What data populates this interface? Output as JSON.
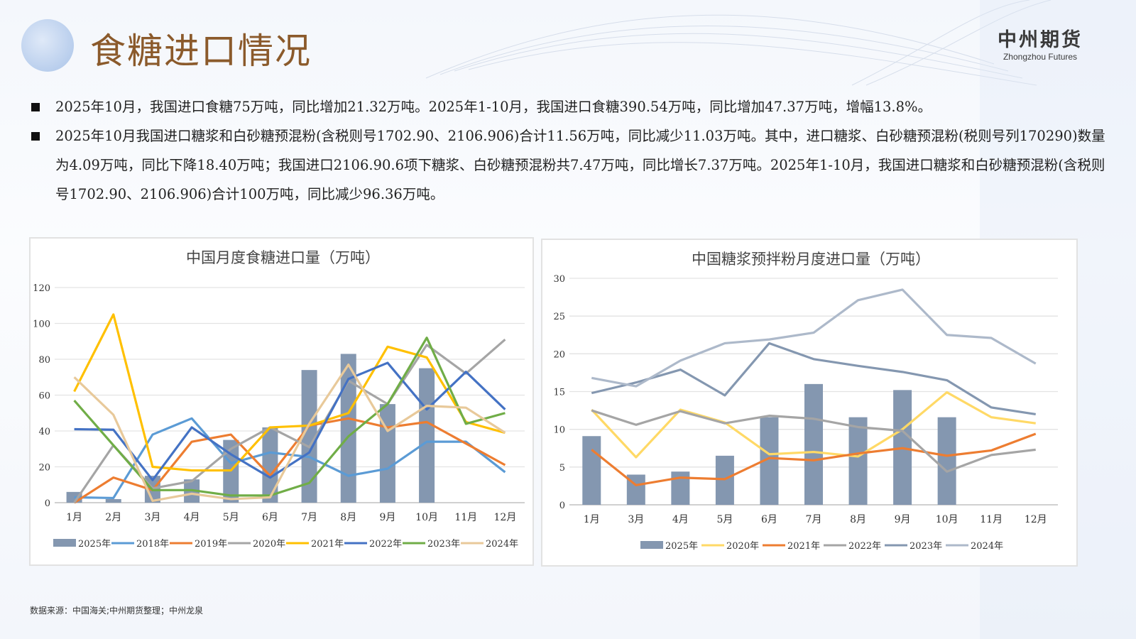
{
  "header": {
    "title": "食糖进口情况",
    "brand_cn": "中州期货",
    "brand_en": "Zhongzhou Futures"
  },
  "bullets": [
    "2025年10月，我国进口食糖75万吨，同比增加21.32万吨。2025年1-10月，我国进口食糖390.54万吨，同比增加47.37万吨，增幅13.8%。",
    "2025年10月我国进口糖浆和白砂糖预混粉(含税则号1702.90、2106.906)合计11.56万吨，同比减少11.03万吨。其中，进口糖浆、白砂糖预混粉(税则号列170290)数量为4.09万吨，同比下降18.40万吨；我国进口2106.90.6项下糖浆、白砂糖预混粉共7.47万吨，同比增长7.37万吨。2025年1-10月，我国进口糖浆和白砂糖预混粉(含税则号1702.90、2106.906)合计100万吨，同比减少96.36万吨。"
  ],
  "source": "数据来源：中国海关;中州期货整理；中州龙泉",
  "chart_data": [
    {
      "type": "bar+line",
      "title": "中国月度食糖进口量（万吨）",
      "ylim": [
        0,
        120
      ],
      "yticks": [
        0,
        20,
        40,
        60,
        80,
        100,
        120
      ],
      "grid": true,
      "legend": "bottom",
      "categories": [
        "1月",
        "2月",
        "3月",
        "4月",
        "5月",
        "6月",
        "7月",
        "8月",
        "9月",
        "10月",
        "11月",
        "12月"
      ],
      "series": [
        {
          "name": "2025年",
          "kind": "bar",
          "color": "#8497b0",
          "values": [
            6,
            2,
            15,
            13,
            35,
            42,
            74,
            83,
            55,
            75,
            null,
            null
          ]
        },
        {
          "name": "2018年",
          "kind": "line",
          "color": "#5b9bd5",
          "values": [
            3,
            2.6,
            38,
            47,
            22,
            28,
            25.5,
            15,
            19,
            34,
            34,
            17
          ]
        },
        {
          "name": "2019年",
          "kind": "line",
          "color": "#ed7d31",
          "values": [
            0,
            14,
            7,
            34,
            38,
            15,
            43,
            47,
            42,
            45,
            33,
            21
          ]
        },
        {
          "name": "2020年",
          "kind": "line",
          "color": "#a5a5a5",
          "values": [
            0,
            32,
            8,
            12,
            30,
            42,
            31,
            68,
            55,
            88,
            72,
            91
          ]
        },
        {
          "name": "2021年",
          "kind": "line",
          "color": "#ffc000",
          "values": [
            62,
            105,
            20,
            18,
            18,
            42,
            43,
            50,
            87,
            81,
            45,
            39
          ]
        },
        {
          "name": "2022年",
          "kind": "line",
          "color": "#4472c4",
          "values": [
            41,
            40.7,
            12.6,
            42,
            27,
            14,
            28,
            69,
            78,
            52,
            73,
            52
          ]
        },
        {
          "name": "2023年",
          "kind": "line",
          "color": "#70ad47",
          "values": [
            57,
            32,
            7,
            7,
            4,
            4,
            11,
            37,
            55,
            92,
            44,
            50
          ]
        },
        {
          "name": "2024年",
          "kind": "line",
          "color": "#e8c99a",
          "values": [
            70,
            49,
            1,
            5,
            2,
            3,
            44,
            77,
            40,
            54,
            53,
            39
          ]
        }
      ]
    },
    {
      "type": "bar+line",
      "title": "中国糖浆预拌粉月度进口量（万吨）",
      "ylim": [
        0,
        30
      ],
      "yticks": [
        0,
        5,
        10,
        15,
        20,
        25,
        30
      ],
      "grid": true,
      "legend": "bottom",
      "categories": [
        "1月",
        "3月",
        "4月",
        "5月",
        "6月",
        "7月",
        "8月",
        "9月",
        "10月",
        "11月",
        "12月"
      ],
      "series": [
        {
          "name": "2025年",
          "kind": "bar",
          "color": "#8497b0",
          "values": [
            9.1,
            4.0,
            4.4,
            6.5,
            11.6,
            16.0,
            11.6,
            15.2,
            11.6,
            null,
            null
          ]
        },
        {
          "name": "2020年",
          "kind": "line",
          "color": "#ffd966",
          "values": [
            12.6,
            6.3,
            12.6,
            10.9,
            6.7,
            7.0,
            6.4,
            10.0,
            14.9,
            11.6,
            10.8
          ]
        },
        {
          "name": "2021年",
          "kind": "line",
          "color": "#ed7d31",
          "values": [
            7.3,
            2.6,
            3.6,
            3.4,
            6.2,
            5.9,
            6.8,
            7.5,
            6.5,
            7.2,
            9.4
          ]
        },
        {
          "name": "2022年",
          "kind": "line",
          "color": "#a5a5a5",
          "values": [
            12.5,
            10.6,
            12.4,
            10.8,
            11.8,
            11.4,
            10.3,
            9.8,
            4.4,
            6.6,
            7.3
          ]
        },
        {
          "name": "2023年",
          "kind": "line",
          "color": "#8497b0",
          "values": [
            14.8,
            16.2,
            17.9,
            14.5,
            21.4,
            19.3,
            18.4,
            17.6,
            16.5,
            12.9,
            12.0
          ]
        },
        {
          "name": "2024年",
          "kind": "line",
          "color": "#adb9ca",
          "values": [
            16.8,
            15.7,
            19.1,
            21.4,
            21.9,
            22.8,
            27.1,
            28.5,
            22.5,
            22.1,
            18.7
          ]
        }
      ]
    }
  ]
}
